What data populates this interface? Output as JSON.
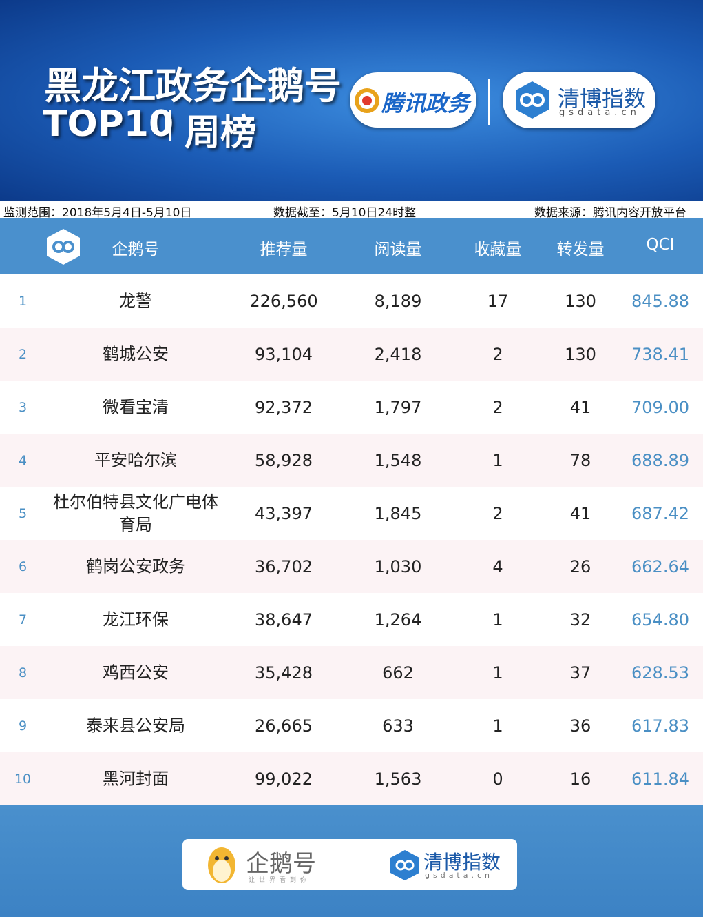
{
  "header": {
    "title": "黑龙江政务企鹅号",
    "subtitle_left": "TOP10",
    "subtitle_right": "周榜",
    "logo_left": "腾讯政务",
    "logo_right": "清博指数",
    "logo_right_domain": "gsdata.cn"
  },
  "info": {
    "range": "监测范围：2018年5月4日-5月10日",
    "cutoff": "数据截至：5月10日24时整",
    "source": "数据来源：腾讯内容开放平台"
  },
  "table": {
    "columns": [
      "企鹅号",
      "推荐量",
      "阅读量",
      "收藏量",
      "转发量",
      "QCI"
    ],
    "rows": [
      [
        "1",
        "龙警",
        "226,560",
        "8,189",
        "17",
        "130",
        "845.88"
      ],
      [
        "2",
        "鹤城公安",
        "93,104",
        "2,418",
        "2",
        "130",
        "738.41"
      ],
      [
        "3",
        "微看宝清",
        "92,372",
        "1,797",
        "2",
        "41",
        "709.00"
      ],
      [
        "4",
        "平安哈尔滨",
        "58,928",
        "1,548",
        "1",
        "78",
        "688.89"
      ],
      [
        "5",
        "杜尔伯特县文化广电体育局",
        "43,397",
        "1,845",
        "2",
        "41",
        "687.42"
      ],
      [
        "6",
        "鹤岗公安政务",
        "36,702",
        "1,030",
        "4",
        "26",
        "662.64"
      ],
      [
        "7",
        "龙江环保",
        "38,647",
        "1,264",
        "1",
        "32",
        "654.80"
      ],
      [
        "8",
        "鸡西公安",
        "35,428",
        "662",
        "1",
        "37",
        "628.53"
      ],
      [
        "9",
        "泰来县公安局",
        "26,665",
        "633",
        "1",
        "36",
        "617.83"
      ],
      [
        "10",
        "黑河封面",
        "99,022",
        "1,563",
        "0",
        "16",
        "611.84"
      ]
    ]
  },
  "footer": {
    "logo_left": "企鹅号",
    "logo_left_slogan": "让世界看到你",
    "logo_right": "清博指数",
    "logo_right_domain": "gsdata.cn"
  }
}
